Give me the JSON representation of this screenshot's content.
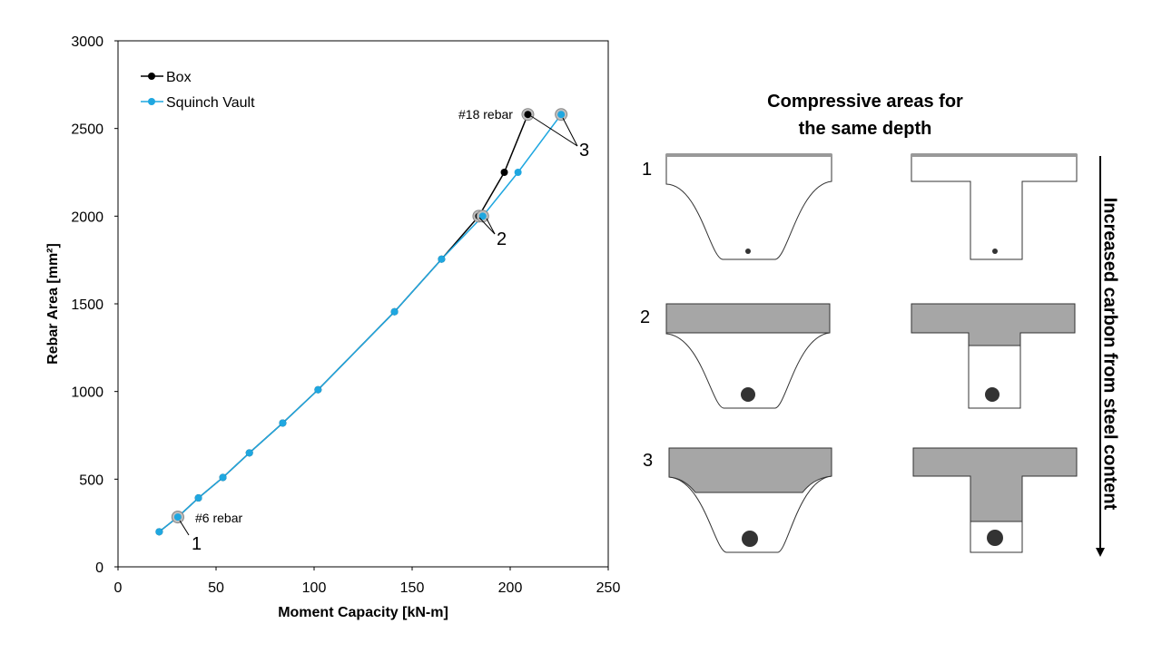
{
  "chart_data": {
    "type": "line",
    "x_label": "Moment Capacity [kN-m]",
    "y_label": "Rebar Area [mm²]",
    "xlim": [
      0,
      250
    ],
    "xticks": [
      0,
      50,
      100,
      150,
      200,
      250
    ],
    "ylim": [
      0,
      3000
    ],
    "yticks": [
      0,
      500,
      1000,
      1500,
      2000,
      2500,
      3000
    ],
    "legend": "upper left",
    "series": [
      {
        "name": "Box",
        "color": "#000000",
        "x": [
          21,
          30.5,
          41,
          53.5,
          67,
          84,
          102,
          141,
          165,
          184,
          197,
          209
        ],
        "values": [
          200,
          284,
          393,
          510,
          650,
          820,
          1010,
          1455,
          1755,
          2000,
          2250,
          2580
        ]
      },
      {
        "name": "Squinch Vault",
        "color": "#1fa7e0",
        "x": [
          21,
          30.5,
          41,
          53.5,
          67,
          84,
          102,
          141,
          165,
          186,
          204,
          226
        ],
        "values": [
          200,
          284,
          393,
          510,
          650,
          820,
          1010,
          1455,
          1755,
          2000,
          2250,
          2580
        ]
      }
    ],
    "annotations": [
      "#6 rebar",
      "1",
      "#18 rebar",
      "2",
      "3"
    ]
  },
  "diagram": {
    "title_lines": [
      "Compressive areas for",
      "the same depth"
    ],
    "row_labels": [
      "1",
      "2",
      "3"
    ],
    "side_label": "Increased carbon from steel content"
  }
}
